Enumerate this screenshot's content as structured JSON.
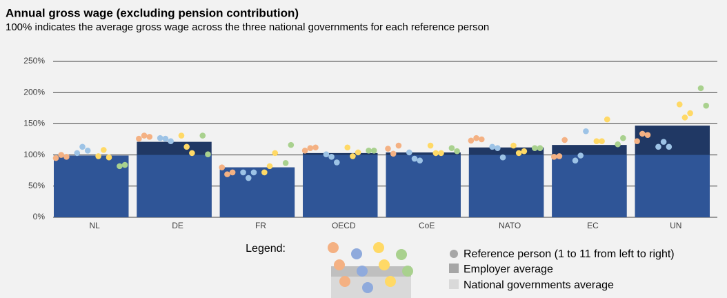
{
  "chart_data": {
    "type": "bar-dots",
    "title": "Annual gross wage (excluding pension contribution)",
    "subtitle": "100% indicates the average gross wage across the three national governments for each reference person",
    "categories": [
      "NL",
      "DE",
      "FR",
      "OECD",
      "CoE",
      "NATO",
      "EC",
      "UN"
    ],
    "employer_average": {
      "color": "#203864",
      "values": [
        99,
        121,
        80,
        103,
        104,
        112,
        116,
        147
      ]
    },
    "national_average": {
      "color": "#2f5597",
      "value": 100
    },
    "series": [
      {
        "color": "#f4b183",
        "values": [
          95,
          126,
          80,
          107,
          110,
          123,
          97,
          122
        ]
      },
      {
        "color": "#f4b183",
        "values": [
          100,
          131,
          69,
          111,
          102,
          127,
          98,
          134
        ]
      },
      {
        "color": "#f4b183",
        "values": [
          97,
          129,
          72,
          112,
          115,
          125,
          124,
          132
        ]
      },
      {
        "color": "#9dc3e6",
        "values": [
          103,
          127,
          72,
          101,
          104,
          113,
          91,
          113
        ]
      },
      {
        "color": "#9dc3e6",
        "values": [
          113,
          126,
          63,
          97,
          94,
          111,
          99,
          121
        ]
      },
      {
        "color": "#9dc3e6",
        "values": [
          107,
          122,
          72,
          88,
          91,
          96,
          138,
          113
        ]
      },
      {
        "color": "#ffd966",
        "values": [
          98,
          131,
          72,
          112,
          115,
          115,
          122,
          181
        ]
      },
      {
        "color": "#ffd966",
        "values": [
          108,
          113,
          82,
          98,
          103,
          103,
          122,
          160
        ]
      },
      {
        "color": "#ffd966",
        "values": [
          96,
          103,
          103,
          104,
          103,
          106,
          157,
          167
        ]
      },
      {
        "color": "#a9d18e",
        "values": [
          82,
          131,
          87,
          107,
          111,
          111,
          117,
          207
        ]
      },
      {
        "color": "#a9d18e",
        "values": [
          84,
          101,
          116,
          107,
          106,
          111,
          127,
          179
        ]
      }
    ],
    "ylim": [
      0,
      250
    ],
    "yticks": [
      {
        "value": 0,
        "label": "0%"
      },
      {
        "value": 50,
        "label": "50%"
      },
      {
        "value": 100,
        "label": "100%"
      },
      {
        "value": 150,
        "label": "150%"
      },
      {
        "value": 200,
        "label": "200%"
      },
      {
        "value": 250,
        "label": "250%"
      }
    ],
    "grid": true,
    "legend": {
      "label": "Legend:",
      "items": [
        "Reference person (1 to 11 from left to right)",
        "Employer average",
        "National governments average"
      ]
    }
  }
}
